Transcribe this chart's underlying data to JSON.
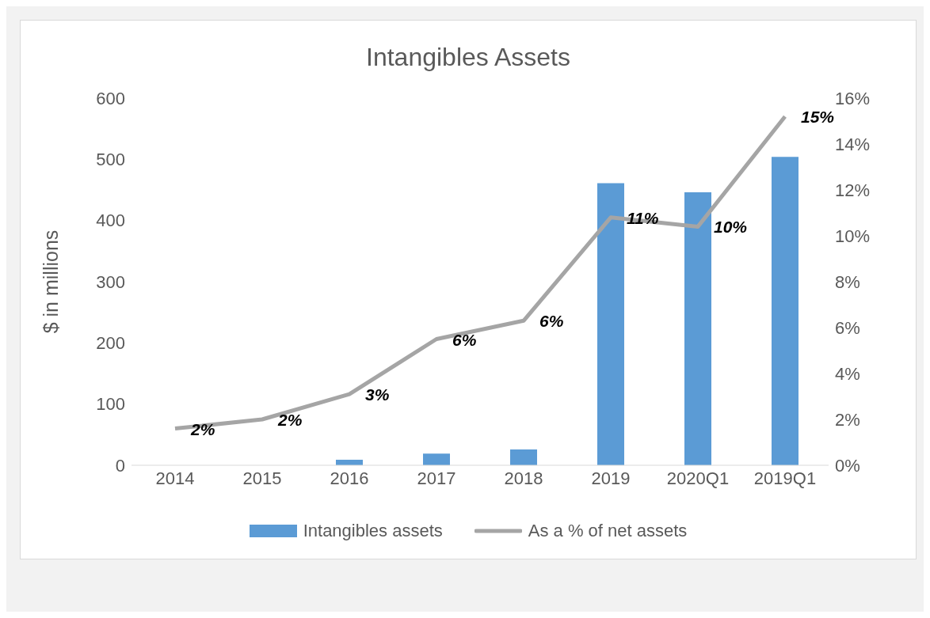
{
  "chart_data": {
    "type": "bar",
    "title": "Intangibles Assets",
    "ylabel": "$ in millions",
    "categories": [
      "2014",
      "2015",
      "2016",
      "2017",
      "2018",
      "2019",
      "2020Q1",
      "2019Q1"
    ],
    "series": [
      {
        "name": "Intangibles assets",
        "color": "#5b9bd5",
        "values": [
          0,
          0,
          9,
          19,
          26,
          461,
          446,
          504
        ]
      },
      {
        "name": "As a % of net assets",
        "type": "line",
        "axis": "y2",
        "color": "#a5a5a5",
        "values": [
          1.6,
          2.0,
          3.1,
          5.5,
          6.3,
          10.8,
          10.4,
          15.2
        ],
        "value_labels": [
          "2%",
          "2%",
          "3%",
          "6%",
          "6%",
          "11%",
          "10%",
          "15%"
        ]
      }
    ],
    "ylim": [
      0,
      600
    ],
    "yticks": [
      0,
      100,
      200,
      300,
      400,
      500,
      600
    ],
    "y2lim": [
      0,
      16
    ],
    "y2ticks": [
      {
        "value": 0,
        "label": "0%"
      },
      {
        "value": 2,
        "label": "2%"
      },
      {
        "value": 4,
        "label": "4%"
      },
      {
        "value": 6,
        "label": "6%"
      },
      {
        "value": 8,
        "label": "8%"
      },
      {
        "value": 10,
        "label": "10%"
      },
      {
        "value": 12,
        "label": "12%"
      },
      {
        "value": 14,
        "label": "14%"
      },
      {
        "value": 16,
        "label": "16%"
      }
    ],
    "grid": false,
    "legend": "bottom",
    "marker": "none",
    "line_style": "solid"
  }
}
